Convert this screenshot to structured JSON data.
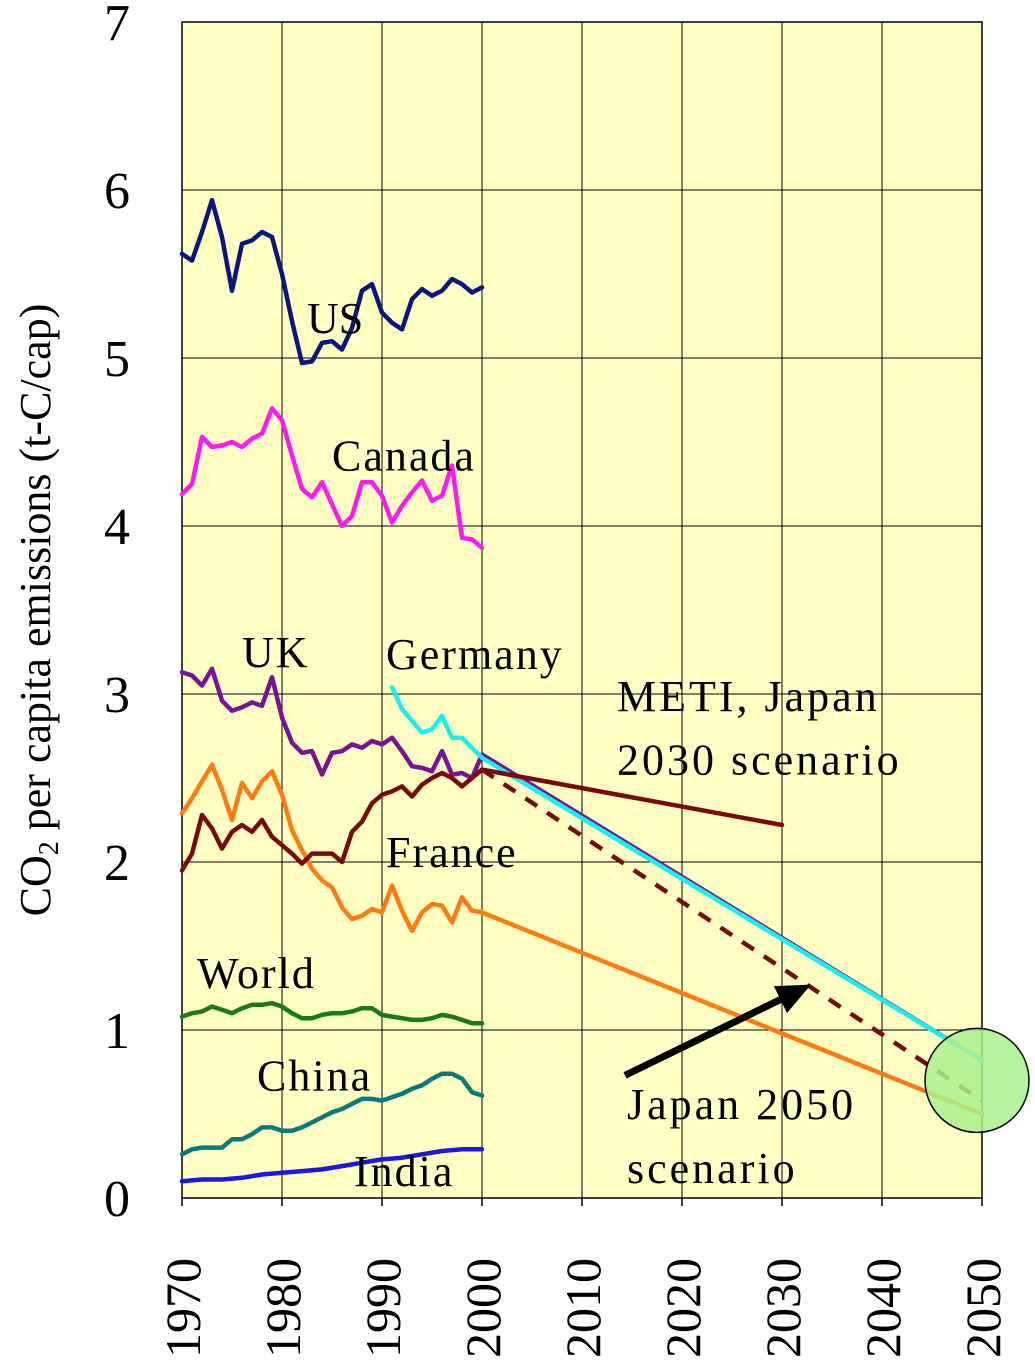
{
  "chart_data": {
    "type": "line",
    "title": "",
    "ylabel": "CO₂ per capita emissions (t-C/cap)",
    "ylabel_main": "CO",
    "ylabel_sub": "2",
    "ylabel_rest": " per capita emissions (t-C/cap)",
    "xlabel": "",
    "xlim": [
      1970,
      2050
    ],
    "ylim": [
      0,
      7
    ],
    "grid": true,
    "x_ticks": [
      1970,
      1980,
      1990,
      2000,
      2010,
      2020,
      2030,
      2040,
      2050
    ],
    "y_ticks": [
      0,
      1,
      2,
      3,
      4,
      5,
      6,
      7
    ],
    "plot_background": "#FFFFC4",
    "series": [
      {
        "name": "US",
        "color": "#0A1580",
        "label": "US",
        "x": [
          1970,
          1971,
          1972,
          1973,
          1974,
          1975,
          1976,
          1977,
          1978,
          1979,
          1980,
          1981,
          1982,
          1983,
          1984,
          1985,
          1986,
          1987,
          1988,
          1989,
          1990,
          1991,
          1992,
          1993,
          1994,
          1995,
          1996,
          1997,
          1998,
          1999,
          2000
        ],
        "y": [
          5.62,
          5.58,
          5.75,
          5.94,
          5.72,
          5.4,
          5.68,
          5.7,
          5.75,
          5.72,
          5.5,
          5.22,
          4.97,
          4.98,
          5.09,
          5.1,
          5.05,
          5.18,
          5.4,
          5.44,
          5.27,
          5.21,
          5.17,
          5.35,
          5.41,
          5.37,
          5.4,
          5.47,
          5.44,
          5.39,
          5.42
        ]
      },
      {
        "name": "Canada",
        "color": "#FF18F0",
        "label": "Canada",
        "x": [
          1970,
          1971,
          1972,
          1973,
          1974,
          1975,
          1976,
          1977,
          1978,
          1979,
          1980,
          1981,
          1982,
          1983,
          1984,
          1985,
          1986,
          1987,
          1988,
          1989,
          1990,
          1991,
          1992,
          1993,
          1994,
          1995,
          1996,
          1997,
          1998,
          1999,
          2000
        ],
        "y": [
          4.19,
          4.25,
          4.53,
          4.47,
          4.48,
          4.5,
          4.47,
          4.52,
          4.55,
          4.7,
          4.63,
          4.42,
          4.22,
          4.17,
          4.26,
          4.13,
          4.0,
          4.06,
          4.26,
          4.26,
          4.18,
          4.02,
          4.12,
          4.2,
          4.27,
          4.15,
          4.18,
          4.36,
          3.93,
          3.92,
          3.87
        ]
      },
      {
        "name": "UK",
        "color": "#7A1294",
        "label": "UK",
        "x": [
          1970,
          1971,
          1972,
          1973,
          1974,
          1975,
          1976,
          1977,
          1978,
          1979,
          1980,
          1981,
          1982,
          1983,
          1984,
          1985,
          1986,
          1987,
          1988,
          1989,
          1990,
          1991,
          1992,
          1993,
          1994,
          1995,
          1996,
          1997,
          1998,
          1999,
          2000,
          2050
        ],
        "y": [
          3.13,
          3.11,
          3.05,
          3.15,
          2.96,
          2.9,
          2.92,
          2.95,
          2.93,
          3.1,
          2.86,
          2.71,
          2.65,
          2.66,
          2.52,
          2.65,
          2.66,
          2.7,
          2.68,
          2.72,
          2.7,
          2.74,
          2.66,
          2.57,
          2.56,
          2.54,
          2.66,
          2.52,
          2.53,
          2.5,
          2.64,
          0.82
        ]
      },
      {
        "name": "Germany",
        "color": "#18F0F0",
        "label": "Germany",
        "x": [
          1991,
          1992,
          1993,
          1994,
          1995,
          1996,
          1997,
          1998,
          1999,
          2000,
          2050
        ],
        "y": [
          3.04,
          2.91,
          2.84,
          2.77,
          2.79,
          2.87,
          2.74,
          2.74,
          2.68,
          2.62,
          0.82
        ]
      },
      {
        "name": "France",
        "color": "#FF7A10",
        "label": "France",
        "x": [
          1970,
          1971,
          1972,
          1973,
          1974,
          1975,
          1976,
          1977,
          1978,
          1979,
          1980,
          1981,
          1982,
          1983,
          1984,
          1985,
          1986,
          1987,
          1988,
          1989,
          1990,
          1991,
          1992,
          1993,
          1994,
          1995,
          1996,
          1997,
          1998,
          1999,
          2000,
          2050
        ],
        "y": [
          2.29,
          2.38,
          2.48,
          2.58,
          2.43,
          2.25,
          2.47,
          2.38,
          2.48,
          2.54,
          2.4,
          2.19,
          2.07,
          1.96,
          1.89,
          1.85,
          1.73,
          1.66,
          1.68,
          1.72,
          1.7,
          1.86,
          1.71,
          1.59,
          1.7,
          1.75,
          1.74,
          1.64,
          1.79,
          1.71,
          1.7,
          0.5
        ]
      },
      {
        "name": "Japan",
        "color": "#7A0A0A",
        "label": "",
        "x": [
          1970,
          1971,
          1972,
          1973,
          1974,
          1975,
          1976,
          1977,
          1978,
          1979,
          1980,
          1981,
          1982,
          1983,
          1984,
          1985,
          1986,
          1987,
          1988,
          1989,
          1990,
          1991,
          1992,
          1993,
          1994,
          1995,
          1996,
          1997,
          1998,
          1999,
          2000
        ],
        "y": [
          1.95,
          2.05,
          2.28,
          2.2,
          2.08,
          2.18,
          2.22,
          2.18,
          2.25,
          2.15,
          2.1,
          2.05,
          1.99,
          2.05,
          2.05,
          2.05,
          2.0,
          2.18,
          2.24,
          2.35,
          2.4,
          2.42,
          2.45,
          2.39,
          2.46,
          2.5,
          2.53,
          2.5,
          2.45,
          2.5,
          2.55
        ]
      },
      {
        "name": "METI, Japan 2030 scenario",
        "color": "#7A0A0A",
        "label": "",
        "x": [
          2000,
          2030
        ],
        "y": [
          2.55,
          2.22
        ]
      },
      {
        "name": "Japan 2050 scenario",
        "color": "#7A0A0A",
        "dashed": true,
        "label": "",
        "x": [
          2000,
          2050
        ],
        "y": [
          2.55,
          0.58
        ]
      },
      {
        "name": "World",
        "color": "#1A7A1A",
        "label": "World",
        "x": [
          1970,
          1971,
          1972,
          1973,
          1974,
          1975,
          1976,
          1977,
          1978,
          1979,
          1980,
          1981,
          1982,
          1983,
          1984,
          1985,
          1986,
          1987,
          1988,
          1989,
          1990,
          1991,
          1992,
          1993,
          1994,
          1995,
          1996,
          1997,
          1998,
          1999,
          2000
        ],
        "y": [
          1.08,
          1.1,
          1.11,
          1.14,
          1.12,
          1.1,
          1.13,
          1.15,
          1.15,
          1.16,
          1.14,
          1.1,
          1.07,
          1.07,
          1.09,
          1.1,
          1.1,
          1.11,
          1.13,
          1.13,
          1.09,
          1.08,
          1.07,
          1.06,
          1.06,
          1.07,
          1.09,
          1.08,
          1.06,
          1.04,
          1.04
        ]
      },
      {
        "name": "China",
        "color": "#0A7A7A",
        "label": "China",
        "x": [
          1970,
          1971,
          1972,
          1973,
          1974,
          1975,
          1976,
          1977,
          1978,
          1979,
          1980,
          1981,
          1982,
          1983,
          1984,
          1985,
          1986,
          1987,
          1988,
          1989,
          1990,
          1991,
          1992,
          1993,
          1994,
          1995,
          1996,
          1997,
          1998,
          1999,
          2000
        ],
        "y": [
          0.26,
          0.29,
          0.3,
          0.3,
          0.3,
          0.35,
          0.35,
          0.38,
          0.42,
          0.42,
          0.4,
          0.4,
          0.42,
          0.45,
          0.48,
          0.51,
          0.53,
          0.56,
          0.59,
          0.59,
          0.58,
          0.6,
          0.62,
          0.65,
          0.67,
          0.71,
          0.74,
          0.74,
          0.71,
          0.63,
          0.61
        ]
      },
      {
        "name": "India",
        "color": "#1A18E0",
        "label": "India",
        "x": [
          1970,
          1972,
          1974,
          1976,
          1978,
          1980,
          1982,
          1984,
          1986,
          1988,
          1990,
          1992,
          1994,
          1996,
          1998,
          2000
        ],
        "y": [
          0.1,
          0.11,
          0.11,
          0.12,
          0.14,
          0.15,
          0.16,
          0.17,
          0.19,
          0.21,
          0.23,
          0.24,
          0.26,
          0.28,
          0.29,
          0.29
        ]
      }
    ],
    "annotations": {
      "meti_line1": "METI, Japan",
      "meti_line2": "2030 scenario",
      "japan2050_line1": "Japan 2050",
      "japan2050_line2": "scenario",
      "target_circle": {
        "x": 2049.5,
        "y": 0.7,
        "color": "#AAF08E"
      }
    }
  }
}
